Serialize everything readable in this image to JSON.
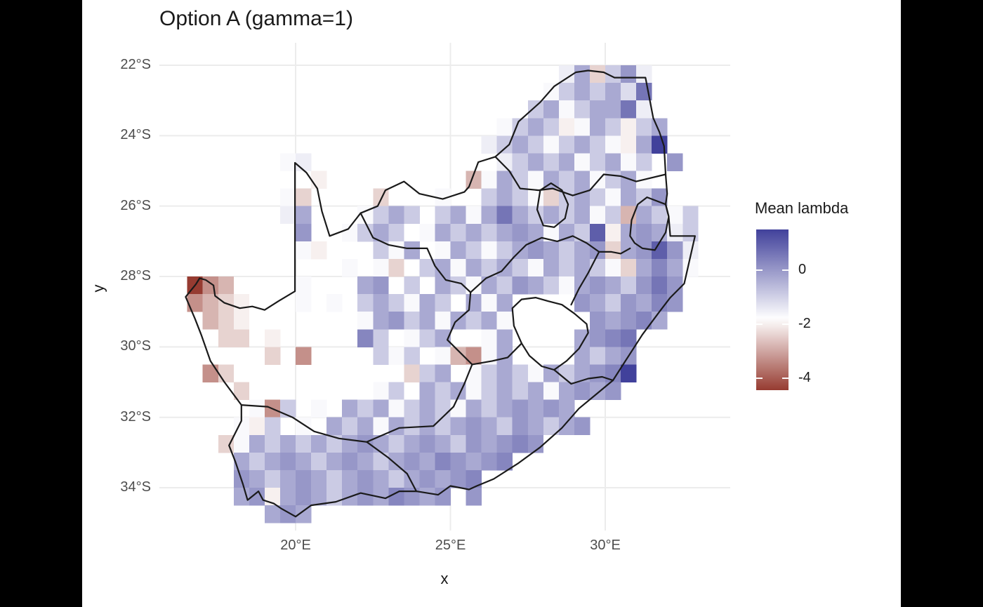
{
  "frame": {
    "background": "#000000"
  },
  "figure": {
    "background": "#FFFFFF",
    "title": "Option A (gamma=1)"
  },
  "axes": {
    "x": {
      "title": "x",
      "ticks": [
        {
          "label": "20°E",
          "lon": 20
        },
        {
          "label": "25°E",
          "lon": 25
        },
        {
          "label": "30°E",
          "lon": 30
        }
      ]
    },
    "y": {
      "title": "y",
      "ticks": [
        {
          "label": "22°S",
          "lat": 22
        },
        {
          "label": "24°S",
          "lat": 24
        },
        {
          "label": "26°S",
          "lat": 26
        },
        {
          "label": "28°S",
          "lat": 28
        },
        {
          "label": "30°S",
          "lat": 30
        },
        {
          "label": "32°S",
          "lat": 32
        },
        {
          "label": "34°S",
          "lat": 34
        }
      ]
    }
  },
  "legend": {
    "title": "Mean lambda",
    "ticks": [
      {
        "label": "0",
        "value": 0
      },
      {
        "label": "-2",
        "value": -2
      },
      {
        "label": "-4",
        "value": -4
      }
    ],
    "domain_top": 1.5,
    "domain_bottom": -4.45
  },
  "colors": {
    "gridline": "#ECECEC",
    "border": "#1A1A1A",
    "tick_text": "#4d4d4d",
    "title_text": "#1a1a1a"
  },
  "chart_data": {
    "type": "heatmap",
    "title": "Option A (gamma=1)",
    "xlabel": "x",
    "ylabel": "y",
    "legend_title": "Mean lambda",
    "x_range_deg_east": [
      16.5,
      33.0
    ],
    "y_range_deg_south": [
      22.0,
      35.0
    ],
    "cell_size_deg": 0.5,
    "grid": "on",
    "legend_position": "right",
    "colormap": {
      "high": "#41419B",
      "mid": "#FFFFFF",
      "low": "#963B31",
      "midpoint": -1.8,
      "vmax": 1.5,
      "vmin": -4.45
    },
    "value_codes": {
      "A": 1.5,
      "B": 1.0,
      "C": 0.6,
      "D": 0.3,
      "E": 0.0,
      "F": -0.3,
      "G": -0.6,
      "H": -0.9,
      "I": -1.2,
      "J": -1.5,
      "K": -1.7,
      "L": -2.0,
      "M": -2.4,
      "N": -2.8,
      "O": -3.3,
      "P": -3.9,
      "Q": -4.5
    },
    "grid_rows": [
      "........................JFMHEJ...",
      ".......................KHFHFIC...",
      "......................HFKHFFCJ...",
      "....................KHFHLKFHLHF..",
      "...................JHFHKHFHKLFA..",
      "......KJ............JHFHFKHFKH.E.",
      "........L.........NKFHKFHFKHFK...",
      "......KM....M...K..HFHKMHFHKFHE..",
      "......JF...KHFH.HFKFCFHFHFKHNFHKH",
      ".......E..KHFH.KFHFHFEFKFHBLFEFJH",
      ".......KL...HKF.KFHKHFEFHFEMFEBEJ",
      "..........K.KM.HFKFHFHKFHFHKMFDFK",
      "QON....K...FE.H.FHKFHEFHKFEFHECE.",
      "ONML...K.K.HFHKFH.FKF....EFHEFDE.",
      ".NML.......KFEHFKFHFK.....EFEDF..",
      "..MM.L.....DH.KHF..KF....FEDC....",
      ".....M.O....HKH.KNOKF....FHFE....",
      ".OM...........MHF.KHFHKFHFEDA....",
      "...M........KH.FHFKHFHFKFEFE.....",
      "....KOH.K.FHFKHFHKFHFEFEF........",
      "...KLH.K.FHFKFHFHFEFHEFHFE.......",
      "..MKFHFHFHFEFHFEFHEFEDE..........",
      "...FHFEFHFEFHFEFDEFED............",
      "...EFHFEFHFEFHFEFED..............",
      "...FELFEFHFEFDEFE.E..............",
      ".....FEF........................."
    ],
    "borders": {
      "outline": [
        [
          16.45,
          28.58
        ],
        [
          16.78,
          28.22
        ],
        [
          16.9,
          28.05
        ],
        [
          17.1,
          28.1
        ],
        [
          17.35,
          28.25
        ],
        [
          17.4,
          28.55
        ],
        [
          17.7,
          28.75
        ],
        [
          18.2,
          28.9
        ],
        [
          18.6,
          28.85
        ],
        [
          19.0,
          28.95
        ],
        [
          19.45,
          28.7
        ],
        [
          19.98,
          28.42
        ],
        [
          19.98,
          24.77
        ],
        [
          20.35,
          25.05
        ],
        [
          20.7,
          25.5
        ],
        [
          20.85,
          26.15
        ],
        [
          21.1,
          26.85
        ],
        [
          21.7,
          26.65
        ],
        [
          22.1,
          26.2
        ],
        [
          22.65,
          26.0
        ],
        [
          22.9,
          25.55
        ],
        [
          23.5,
          25.3
        ],
        [
          24.0,
          25.65
        ],
        [
          24.75,
          25.8
        ],
        [
          25.45,
          25.6
        ],
        [
          25.6,
          25.45
        ],
        [
          25.9,
          24.75
        ],
        [
          26.45,
          24.6
        ],
        [
          26.9,
          24.25
        ],
        [
          27.2,
          23.6
        ],
        [
          27.9,
          23.05
        ],
        [
          28.35,
          22.6
        ],
        [
          29.05,
          22.2
        ],
        [
          29.45,
          22.15
        ],
        [
          29.95,
          22.2
        ],
        [
          30.3,
          22.35
        ],
        [
          31.3,
          22.35
        ],
        [
          31.55,
          23.5
        ],
        [
          31.75,
          23.9
        ],
        [
          31.9,
          24.3
        ],
        [
          31.95,
          25.1
        ],
        [
          32.0,
          25.65
        ],
        [
          31.95,
          25.95
        ],
        [
          32.05,
          26.3
        ],
        [
          32.1,
          26.85
        ],
        [
          32.9,
          26.85
        ],
        [
          32.55,
          28.2
        ],
        [
          32.1,
          28.6
        ],
        [
          31.75,
          29.0
        ],
        [
          31.2,
          29.65
        ],
        [
          30.65,
          30.4
        ],
        [
          30.25,
          30.95
        ],
        [
          29.7,
          31.35
        ],
        [
          29.15,
          31.75
        ],
        [
          28.6,
          32.3
        ],
        [
          27.9,
          32.85
        ],
        [
          27.2,
          33.3
        ],
        [
          26.4,
          33.75
        ],
        [
          25.85,
          33.95
        ],
        [
          25.6,
          34.05
        ],
        [
          25.0,
          33.95
        ],
        [
          24.6,
          34.2
        ],
        [
          23.9,
          34.1
        ],
        [
          23.35,
          34.1
        ],
        [
          22.9,
          34.3
        ],
        [
          22.1,
          34.15
        ],
        [
          21.3,
          34.4
        ],
        [
          20.5,
          34.5
        ],
        [
          20.0,
          34.82
        ],
        [
          19.55,
          34.6
        ],
        [
          19.3,
          34.45
        ],
        [
          18.95,
          34.35
        ],
        [
          18.8,
          34.1
        ],
        [
          18.45,
          34.35
        ],
        [
          18.3,
          33.9
        ],
        [
          18.05,
          33.25
        ],
        [
          17.85,
          32.8
        ],
        [
          18.25,
          32.1
        ],
        [
          18.25,
          31.65
        ],
        [
          17.7,
          31.0
        ],
        [
          17.25,
          30.4
        ],
        [
          16.95,
          29.65
        ],
        [
          16.75,
          29.2
        ],
        [
          16.45,
          28.58
        ]
      ],
      "lesotho": [
        [
          27.0,
          28.9
        ],
        [
          27.3,
          28.65
        ],
        [
          27.75,
          28.6
        ],
        [
          28.15,
          28.7
        ],
        [
          28.6,
          28.8
        ],
        [
          29.0,
          29.05
        ],
        [
          29.4,
          29.35
        ],
        [
          29.45,
          29.6
        ],
        [
          29.15,
          30.05
        ],
        [
          28.75,
          30.4
        ],
        [
          28.35,
          30.65
        ],
        [
          27.95,
          30.55
        ],
        [
          27.55,
          30.25
        ],
        [
          27.3,
          29.9
        ],
        [
          27.05,
          29.4
        ],
        [
          27.0,
          28.9
        ]
      ],
      "eswatini": [
        [
          30.8,
          26.85
        ],
        [
          30.85,
          26.4
        ],
        [
          31.05,
          25.95
        ],
        [
          31.35,
          25.75
        ],
        [
          31.95,
          25.95
        ],
        [
          32.05,
          26.3
        ],
        [
          31.95,
          26.75
        ],
        [
          31.6,
          27.25
        ],
        [
          31.2,
          27.2
        ],
        [
          30.95,
          27.05
        ],
        [
          30.8,
          26.85
        ]
      ],
      "province_lines": [
        [
          [
            18.25,
            31.65
          ],
          [
            19.1,
            31.7
          ],
          [
            19.9,
            32.0
          ],
          [
            20.6,
            32.4
          ],
          [
            21.4,
            32.6
          ],
          [
            22.3,
            32.7
          ],
          [
            23.0,
            33.15
          ],
          [
            23.6,
            33.6
          ],
          [
            23.9,
            34.1
          ]
        ],
        [
          [
            22.3,
            32.7
          ],
          [
            23.35,
            32.3
          ],
          [
            24.45,
            32.25
          ],
          [
            25.1,
            31.7
          ],
          [
            25.45,
            31.05
          ],
          [
            25.7,
            30.5
          ]
        ],
        [
          [
            25.7,
            30.5
          ],
          [
            26.35,
            30.4
          ],
          [
            26.85,
            30.3
          ],
          [
            27.3,
            29.9
          ]
        ],
        [
          [
            28.35,
            30.65
          ],
          [
            28.9,
            31.05
          ],
          [
            29.45,
            30.9
          ],
          [
            29.9,
            30.85
          ],
          [
            30.25,
            30.95
          ]
        ],
        [
          [
            25.7,
            30.5
          ],
          [
            24.9,
            29.8
          ],
          [
            25.15,
            29.3
          ],
          [
            25.6,
            28.95
          ],
          [
            25.65,
            28.45
          ],
          [
            25.35,
            28.2
          ],
          [
            24.85,
            28.1
          ],
          [
            24.5,
            27.7
          ],
          [
            24.25,
            27.2
          ],
          [
            23.6,
            27.2
          ],
          [
            23.0,
            27.1
          ],
          [
            22.5,
            26.9
          ],
          [
            22.1,
            26.2
          ]
        ],
        [
          [
            25.65,
            28.45
          ],
          [
            26.15,
            28.05
          ],
          [
            26.65,
            27.85
          ],
          [
            27.05,
            27.45
          ],
          [
            27.45,
            27.1
          ],
          [
            27.95,
            26.9
          ],
          [
            28.45,
            27.0
          ],
          [
            28.95,
            26.85
          ],
          [
            29.4,
            27.05
          ],
          [
            29.8,
            27.3
          ],
          [
            30.2,
            27.3
          ],
          [
            30.5,
            27.35
          ],
          [
            30.8,
            27.2
          ]
        ],
        [
          [
            29.8,
            27.3
          ],
          [
            29.45,
            27.9
          ],
          [
            29.15,
            28.35
          ],
          [
            28.9,
            28.8
          ]
        ],
        [
          [
            26.45,
            24.6
          ],
          [
            26.9,
            25.0
          ],
          [
            27.25,
            25.5
          ],
          [
            27.85,
            25.55
          ],
          [
            28.3,
            25.5
          ],
          [
            28.95,
            25.7
          ],
          [
            29.5,
            25.55
          ],
          [
            29.95,
            25.1
          ],
          [
            30.5,
            25.15
          ],
          [
            31.0,
            25.3
          ],
          [
            31.95,
            25.1
          ]
        ],
        [
          [
            28.0,
            26.55
          ],
          [
            27.8,
            26.1
          ],
          [
            27.9,
            25.55
          ],
          [
            28.25,
            25.35
          ],
          [
            28.6,
            25.55
          ],
          [
            28.8,
            25.95
          ],
          [
            28.7,
            26.35
          ],
          [
            28.35,
            26.6
          ],
          [
            28.0,
            26.55
          ]
        ]
      ]
    }
  }
}
